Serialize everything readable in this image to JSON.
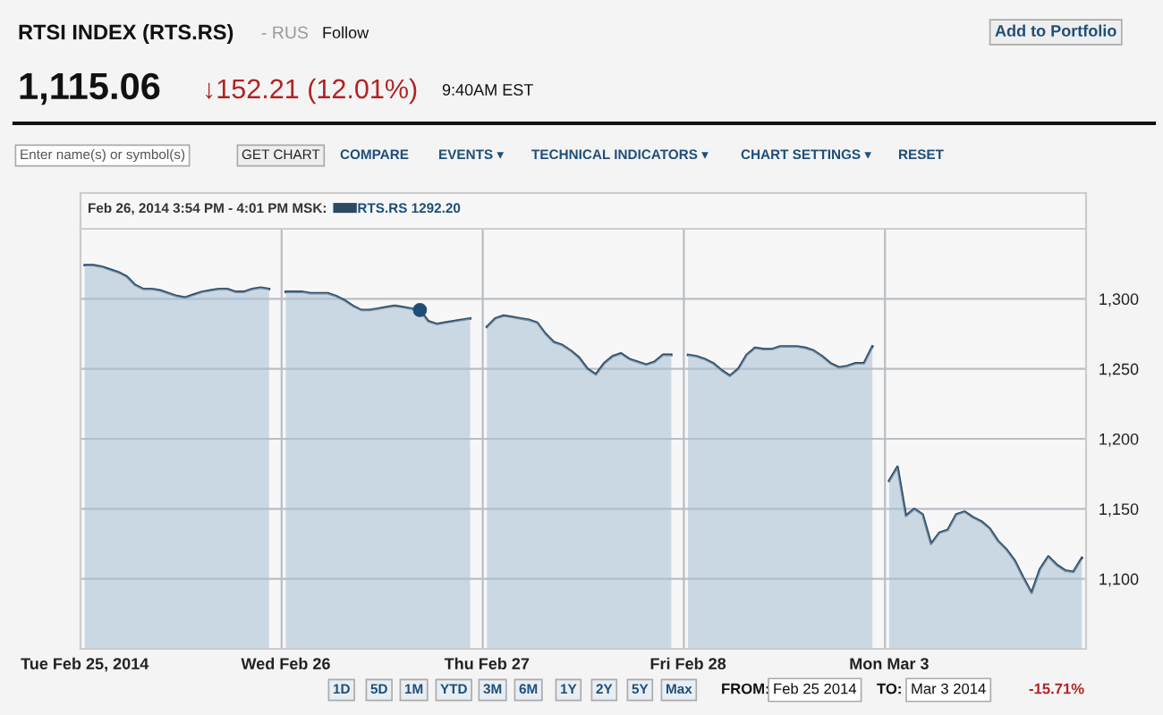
{
  "chart_data": {
    "type": "area",
    "title": "RTSI INDEX (RTS.RS)",
    "subtitle": "1,115.06",
    "categories": [
      "Tue Feb 25, 2014",
      null,
      null,
      null,
      null,
      null,
      null,
      null,
      null,
      null,
      null,
      null,
      null,
      null,
      null,
      null,
      null,
      null,
      null,
      null,
      null,
      null,
      null,
      null,
      "Wed Feb 26",
      null,
      null,
      null,
      null,
      null,
      null,
      null,
      null,
      null,
      null,
      null,
      null,
      null,
      null,
      null,
      null,
      null,
      null,
      null,
      null,
      null,
      null,
      null,
      "Thu Feb 27",
      null,
      null,
      null,
      null,
      null,
      null,
      null,
      null,
      null,
      null,
      null,
      null,
      null,
      null,
      null,
      null,
      null,
      null,
      null,
      null,
      null,
      null,
      null,
      "Fri Feb 28",
      null,
      null,
      null,
      null,
      null,
      null,
      null,
      null,
      null,
      null,
      null,
      null,
      null,
      null,
      null,
      null,
      null,
      null,
      null,
      null,
      null,
      null,
      null,
      "Mon Mar 3",
      null,
      null,
      null,
      null,
      null,
      null,
      null,
      null,
      null,
      null,
      null,
      null,
      null,
      null,
      null,
      null,
      null,
      null,
      null,
      null,
      null,
      null,
      null
    ],
    "series": [
      {
        "name": "RTS.RS 1292.20",
        "color": "#2d4a63",
        "values": [
          1324,
          1324,
          1323,
          1321,
          1319,
          1316,
          1310,
          1307,
          1307,
          1306,
          1304,
          1302,
          1301,
          1303,
          1305,
          1306,
          1307,
          1307,
          1305,
          1305,
          1307,
          1308,
          1307,
          null,
          1305,
          1305,
          1305,
          1304,
          1304,
          1304,
          1302,
          1299,
          1295,
          1292,
          1292,
          1293,
          1294,
          1295,
          1294,
          1293,
          1292,
          1284,
          1282,
          1283,
          1284,
          1285,
          1286,
          null,
          1280,
          1286,
          1288,
          1287,
          1286,
          1285,
          1283,
          1275,
          1269,
          1267,
          1263,
          1258,
          1250,
          1246,
          1254,
          1259,
          1261,
          1257,
          1255,
          1253,
          1255,
          1260,
          1260,
          null,
          1260,
          1259,
          1257,
          1254,
          1249,
          1245,
          1250,
          1260,
          1265,
          1264,
          1264,
          1266,
          1266,
          1266,
          1265,
          1263,
          1259,
          1254,
          1251,
          1252,
          1254,
          1254,
          1266,
          null,
          1170,
          1180,
          1145,
          1150,
          1146,
          1125,
          1133,
          1135,
          1146,
          1148,
          1144,
          1141,
          1136,
          1127,
          1121,
          1113,
          1101,
          1090,
          1107,
          1116,
          1110,
          1106,
          1105,
          1115
        ]
      },
      {
        "type": "scatter",
        "color": "#1f4e79",
        "values": [
          null,
          null,
          null,
          null,
          null,
          null,
          null,
          null,
          null,
          null,
          null,
          null,
          null,
          null,
          null,
          null,
          null,
          null,
          null,
          null,
          null,
          null,
          null,
          null,
          null,
          null,
          null,
          null,
          null,
          null,
          null,
          null,
          null,
          null,
          null,
          null,
          null,
          null,
          null,
          null,
          1292,
          null,
          null,
          null,
          null,
          null,
          null,
          null,
          null,
          null,
          null,
          null,
          null,
          null,
          null,
          null,
          null,
          null,
          null,
          null,
          null,
          null,
          null,
          null,
          null,
          null,
          null,
          null,
          null,
          null,
          null,
          null,
          null,
          null,
          null,
          null,
          null,
          null,
          null,
          null,
          null,
          null,
          null,
          null,
          null,
          null,
          null,
          null,
          null,
          null,
          null,
          null,
          null,
          null,
          null,
          null,
          null,
          null,
          null,
          null,
          null,
          null,
          null,
          null,
          null,
          null,
          null,
          null,
          null,
          null,
          null,
          null,
          null,
          null,
          null,
          null,
          null,
          null,
          null,
          null
        ]
      }
    ],
    "ylim": [
      1050,
      1350
    ],
    "yticks": [
      {
        "value": 1100,
        "label": "1,100"
      },
      {
        "value": 1150,
        "label": "1,150"
      },
      {
        "value": 1200,
        "label": "1,200"
      },
      {
        "value": 1250,
        "label": "1,250"
      },
      {
        "value": 1300,
        "label": "1,300"
      }
    ],
    "grid": true,
    "legend": "top left",
    "annotations": [
      "Feb 26, 2014 3:54 PM - 4:01 PM MSK:",
      "- RUS",
      "Follow",
      "Add to Portfolio",
      "↓152.21 (12.01%)",
      "9:40AM EST",
      "Enter name(s) or symbol(s)",
      "GET CHART",
      "COMPARE",
      "EVENTS ▾",
      "TECHNICAL INDICATORS ▾",
      "CHART SETTINGS ▾",
      "RESET",
      "1D",
      "5D",
      "1M",
      "YTD",
      "3M",
      "6M",
      "1Y",
      "2Y",
      "5Y",
      "Max",
      "FROM:",
      "Feb 25 2014",
      "TO:",
      "Mar 3 2014",
      "-15.71%"
    ]
  }
}
